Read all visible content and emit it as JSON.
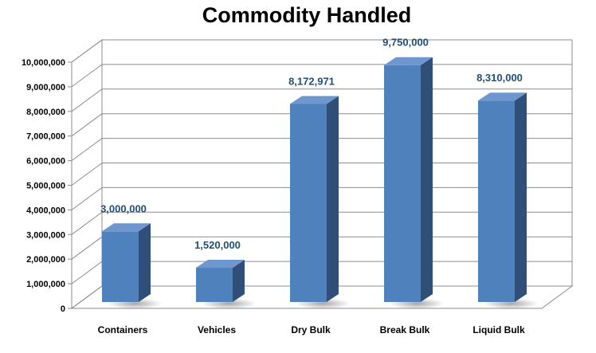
{
  "chart_data": {
    "type": "bar",
    "title": "Commodity Handled",
    "xlabel": "",
    "ylabel": "",
    "categories": [
      "Containers",
      "Vehicles",
      "Dry Bulk",
      "Break Bulk",
      "Liquid Bulk"
    ],
    "values": [
      3000000,
      1520000,
      8172971,
      9750000,
      8310000
    ],
    "data_labels": [
      "3,000,000",
      "1,520,000",
      "8,172,971",
      "9,750,000",
      "8,310,000"
    ],
    "ylim": [
      0,
      10000000
    ],
    "y_ticks": [
      0,
      1000000,
      2000000,
      3000000,
      4000000,
      5000000,
      6000000,
      7000000,
      8000000,
      9000000,
      10000000
    ],
    "y_tick_labels": [
      "0",
      "1,000,000",
      "2,000,000",
      "3,000,000",
      "4,000,000",
      "5,000,000",
      "6,000,000",
      "7,000,000",
      "8,000,000",
      "9,000,000",
      "10,000,000"
    ],
    "grid": true,
    "legend": "none",
    "style": "3d-column",
    "colors": {
      "bar_front": "#4f81bd",
      "bar_side": "#2f4f79",
      "bar_top": "#6f97cf",
      "data_label": "#1f4e79"
    }
  }
}
